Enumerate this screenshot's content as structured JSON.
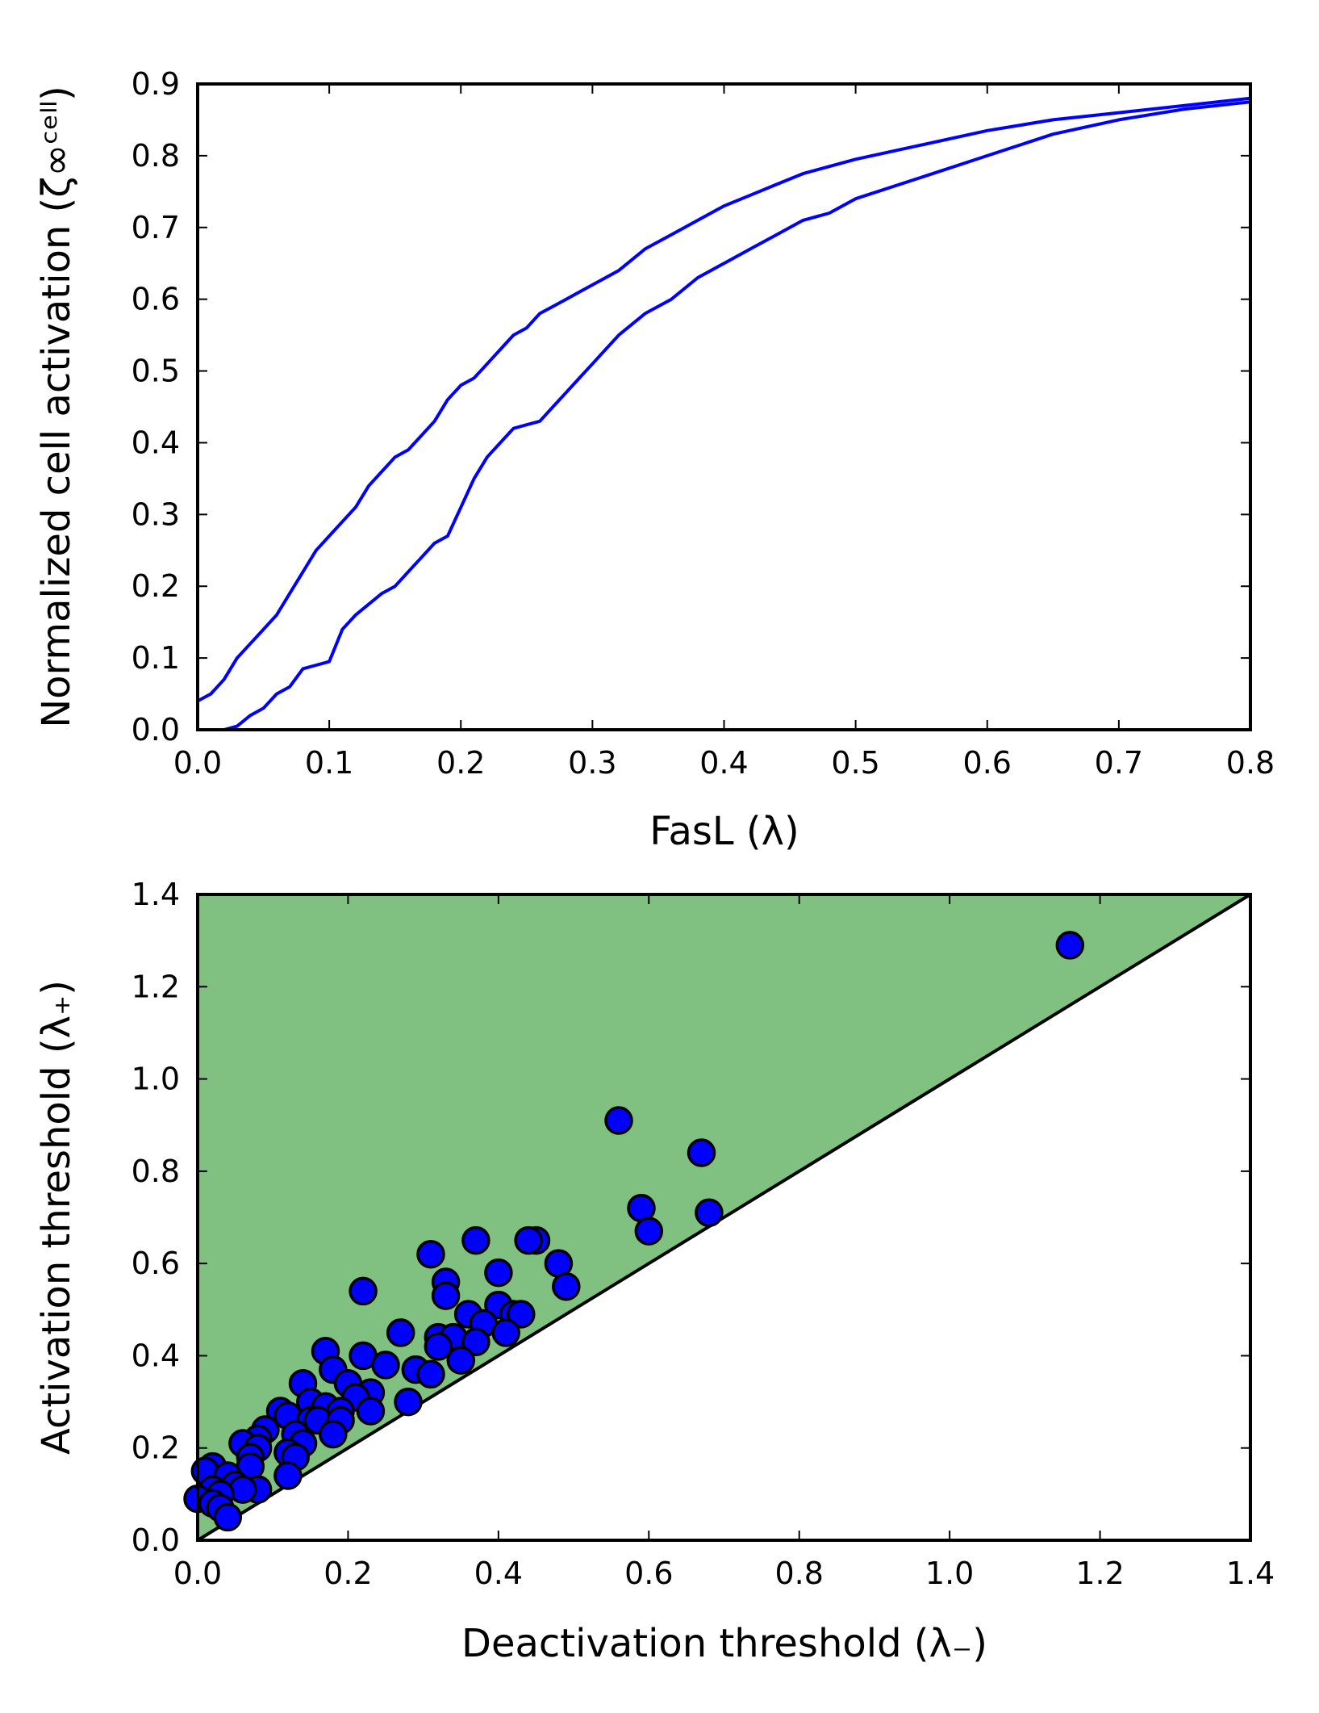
{
  "chart_data": [
    {
      "type": "line",
      "xlabel": "FasL (λ)",
      "ylabel": "Normalized cell activation (ζ∞ᶜᵉˡˡ)",
      "xlim": [
        0,
        0.8
      ],
      "ylim": [
        0,
        0.9
      ],
      "xticks": [
        "0.0",
        "0.1",
        "0.2",
        "0.3",
        "0.4",
        "0.5",
        "0.6",
        "0.7",
        "0.8"
      ],
      "yticks": [
        "0.0",
        "0.1",
        "0.2",
        "0.3",
        "0.4",
        "0.5",
        "0.6",
        "0.7",
        "0.8",
        "0.9"
      ],
      "grid": false,
      "color": "#0000ff",
      "series": [
        {
          "x": [
            0,
            0.01,
            0.02,
            0.03,
            0.04,
            0.05,
            0.06,
            0.07,
            0.08,
            0.09,
            0.1,
            0.11,
            0.12,
            0.13,
            0.14,
            0.15,
            0.16,
            0.17,
            0.18,
            0.19,
            0.2,
            0.21,
            0.22,
            0.23,
            0.24,
            0.25,
            0.26,
            0.27,
            0.28,
            0.29,
            0.3,
            0.32,
            0.34,
            0.36,
            0.38,
            0.4,
            0.42,
            0.44,
            0.46,
            0.48,
            0.5,
            0.55,
            0.6,
            0.65,
            0.7,
            0.75,
            0.8
          ],
          "values": [
            0.04,
            0.05,
            0.07,
            0.1,
            0.12,
            0.14,
            0.16,
            0.19,
            0.22,
            0.25,
            0.27,
            0.29,
            0.31,
            0.34,
            0.36,
            0.38,
            0.39,
            0.41,
            0.43,
            0.46,
            0.48,
            0.49,
            0.51,
            0.53,
            0.55,
            0.56,
            0.58,
            0.59,
            0.6,
            0.61,
            0.62,
            0.64,
            0.67,
            0.69,
            0.71,
            0.73,
            0.745,
            0.76,
            0.775,
            0.785,
            0.795,
            0.815,
            0.835,
            0.85,
            0.86,
            0.87,
            0.88
          ]
        },
        {
          "x": [
            0,
            0.01,
            0.02,
            0.03,
            0.04,
            0.05,
            0.06,
            0.07,
            0.08,
            0.09,
            0.1,
            0.11,
            0.12,
            0.13,
            0.14,
            0.15,
            0.16,
            0.17,
            0.18,
            0.19,
            0.2,
            0.21,
            0.22,
            0.23,
            0.24,
            0.25,
            0.26,
            0.27,
            0.28,
            0.29,
            0.3,
            0.32,
            0.34,
            0.36,
            0.38,
            0.4,
            0.42,
            0.44,
            0.46,
            0.48,
            0.5,
            0.55,
            0.6,
            0.65,
            0.7,
            0.75,
            0.8
          ],
          "values": [
            0,
            0,
            0,
            0.005,
            0.02,
            0.03,
            0.05,
            0.06,
            0.085,
            0.09,
            0.095,
            0.14,
            0.16,
            0.175,
            0.19,
            0.2,
            0.22,
            0.24,
            0.26,
            0.27,
            0.31,
            0.35,
            0.38,
            0.4,
            0.42,
            0.425,
            0.43,
            0.45,
            0.47,
            0.49,
            0.51,
            0.55,
            0.58,
            0.6,
            0.63,
            0.65,
            0.67,
            0.69,
            0.71,
            0.72,
            0.74,
            0.77,
            0.8,
            0.83,
            0.85,
            0.865,
            0.875
          ]
        }
      ]
    },
    {
      "type": "scatter",
      "xlabel": "Deactivation threshold (λ₋)",
      "ylabel": "Activation threshold (λ₊)",
      "xlim": [
        0,
        1.4
      ],
      "ylim": [
        0,
        1.4
      ],
      "xticks": [
        "0.0",
        "0.2",
        "0.4",
        "0.6",
        "0.8",
        "1.0",
        "1.2",
        "1.4"
      ],
      "yticks": [
        "0.0",
        "0.2",
        "0.4",
        "0.6",
        "0.8",
        "1.0",
        "1.2",
        "1.4"
      ],
      "grid": false,
      "region_color": "#80c080",
      "point_color": "#0000ff",
      "diagonal": [
        [
          0,
          0
        ],
        [
          1.4,
          1.4
        ]
      ],
      "points": [
        [
          1.16,
          1.29
        ],
        [
          0.56,
          0.91
        ],
        [
          0.67,
          0.84
        ],
        [
          0.59,
          0.72
        ],
        [
          0.68,
          0.71
        ],
        [
          0.6,
          0.67
        ],
        [
          0.45,
          0.65
        ],
        [
          0.44,
          0.65
        ],
        [
          0.37,
          0.65
        ],
        [
          0.31,
          0.62
        ],
        [
          0.48,
          0.6
        ],
        [
          0.4,
          0.58
        ],
        [
          0.33,
          0.56
        ],
        [
          0.49,
          0.55
        ],
        [
          0.22,
          0.54
        ],
        [
          0.33,
          0.53
        ],
        [
          0.4,
          0.51
        ],
        [
          0.36,
          0.49
        ],
        [
          0.42,
          0.49
        ],
        [
          0.43,
          0.49
        ],
        [
          0.38,
          0.47
        ],
        [
          0.27,
          0.45
        ],
        [
          0.41,
          0.45
        ],
        [
          0.32,
          0.44
        ],
        [
          0.34,
          0.44
        ],
        [
          0.37,
          0.43
        ],
        [
          0.32,
          0.42
        ],
        [
          0.17,
          0.41
        ],
        [
          0.22,
          0.4
        ],
        [
          0.35,
          0.39
        ],
        [
          0.25,
          0.38
        ],
        [
          0.29,
          0.37
        ],
        [
          0.18,
          0.37
        ],
        [
          0.31,
          0.36
        ],
        [
          0.14,
          0.34
        ],
        [
          0.2,
          0.34
        ],
        [
          0.23,
          0.32
        ],
        [
          0.21,
          0.31
        ],
        [
          0.15,
          0.3
        ],
        [
          0.28,
          0.3
        ],
        [
          0.17,
          0.29
        ],
        [
          0.11,
          0.28
        ],
        [
          0.19,
          0.28
        ],
        [
          0.23,
          0.28
        ],
        [
          0.12,
          0.27
        ],
        [
          0.15,
          0.26
        ],
        [
          0.16,
          0.26
        ],
        [
          0.19,
          0.26
        ],
        [
          0.09,
          0.24
        ],
        [
          0.13,
          0.23
        ],
        [
          0.18,
          0.23
        ],
        [
          0.08,
          0.22
        ],
        [
          0.06,
          0.21
        ],
        [
          0.14,
          0.21
        ],
        [
          0.08,
          0.2
        ],
        [
          0.12,
          0.19
        ],
        [
          0.07,
          0.18
        ],
        [
          0.13,
          0.18
        ],
        [
          0.02,
          0.16
        ],
        [
          0.07,
          0.16
        ],
        [
          0.01,
          0.15
        ],
        [
          0.04,
          0.14
        ],
        [
          0.12,
          0.14
        ],
        [
          0.05,
          0.12
        ],
        [
          0.02,
          0.11
        ],
        [
          0.08,
          0.11
        ],
        [
          0.06,
          0.11
        ],
        [
          0.03,
          0.1
        ],
        [
          0.0,
          0.09
        ],
        [
          0.02,
          0.08
        ],
        [
          0.03,
          0.07
        ],
        [
          0.04,
          0.05
        ]
      ]
    }
  ]
}
